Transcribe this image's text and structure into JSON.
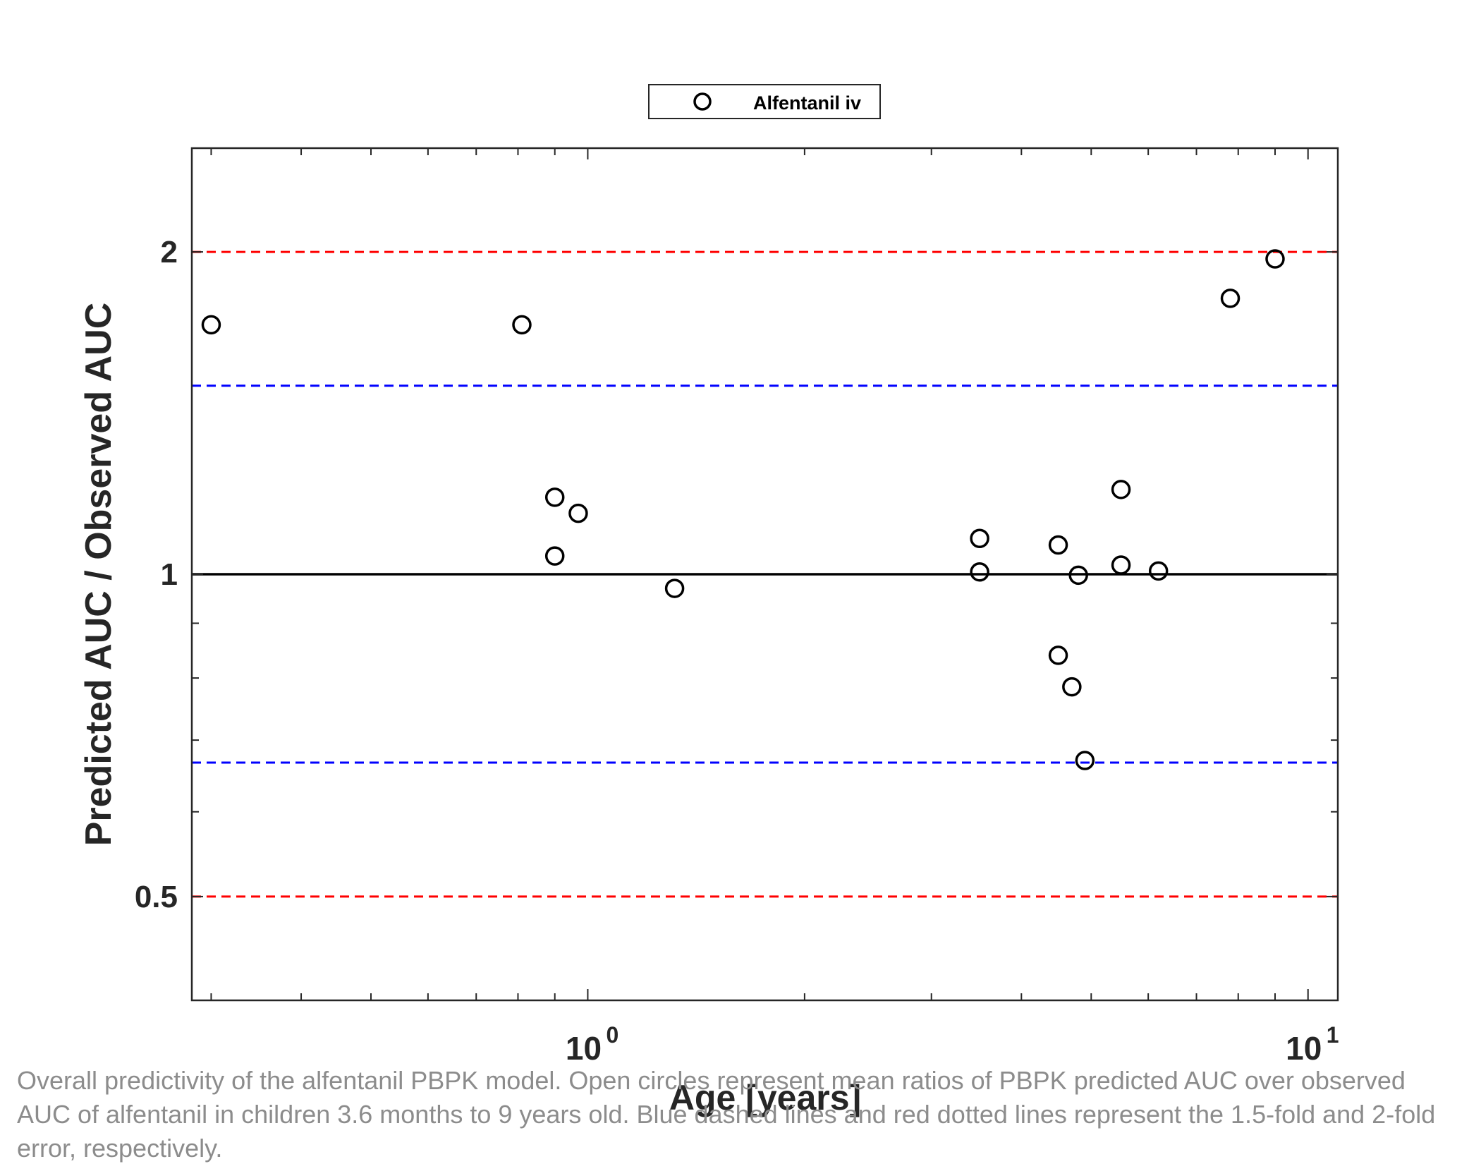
{
  "chart_data": {
    "type": "scatter",
    "xlabel": "Age [years]",
    "ylabel": "Predicted AUC / Observed AUC",
    "xscale": "log",
    "yscale": "log",
    "xlim": [
      0.3,
      10
    ],
    "ylim": [
      0.4,
      2.5
    ],
    "x_ticks": [
      {
        "value": 1,
        "label_base": "10",
        "label_exp": "0"
      },
      {
        "value": 10,
        "label_base": "10",
        "label_exp": "1"
      }
    ],
    "y_ticks": [
      {
        "value": 0.5,
        "label": "0.5"
      },
      {
        "value": 1,
        "label": "1"
      },
      {
        "value": 2,
        "label": "2"
      }
    ],
    "legend": {
      "position": "top-center",
      "entries": [
        {
          "label": "Alfentanil iv",
          "marker": "open-circle"
        }
      ]
    },
    "series": [
      {
        "name": "Alfentanil iv",
        "marker": "open-circle",
        "color": "#000000",
        "points": [
          {
            "x": 0.3,
            "y": 1.71
          },
          {
            "x": 0.81,
            "y": 1.71
          },
          {
            "x": 0.9,
            "y": 1.18
          },
          {
            "x": 0.97,
            "y": 1.14
          },
          {
            "x": 0.9,
            "y": 1.04
          },
          {
            "x": 1.32,
            "y": 0.97
          },
          {
            "x": 3.5,
            "y": 1.08
          },
          {
            "x": 3.5,
            "y": 1.005
          },
          {
            "x": 4.5,
            "y": 1.065
          },
          {
            "x": 4.5,
            "y": 0.84
          },
          {
            "x": 4.7,
            "y": 0.785
          },
          {
            "x": 4.8,
            "y": 0.998
          },
          {
            "x": 4.9,
            "y": 0.67
          },
          {
            "x": 5.5,
            "y": 1.2
          },
          {
            "x": 5.5,
            "y": 1.02
          },
          {
            "x": 6.2,
            "y": 1.007
          },
          {
            "x": 7.8,
            "y": 1.81
          },
          {
            "x": 9.0,
            "y": 1.97
          }
        ]
      }
    ],
    "reference_lines": [
      {
        "y": 1,
        "style": "solid",
        "color": "#000000"
      },
      {
        "y": 1.5,
        "style": "dashed",
        "color": "#0000ff"
      },
      {
        "y": 0.667,
        "style": "dashed",
        "color": "#0000ff"
      },
      {
        "y": 2,
        "style": "dashed",
        "color": "#ff0000"
      },
      {
        "y": 0.5,
        "style": "dashed",
        "color": "#ff0000"
      }
    ]
  },
  "caption": "Overall predictivity of the alfentanil PBPK model. Open circles represent mean ratios of PBPK predicted AUC over observed AUC of alfentanil in children 3.6 months to 9 years old. Blue dashed lines and red dotted lines represent the 1.5-fold and 2-fold error, respectively."
}
